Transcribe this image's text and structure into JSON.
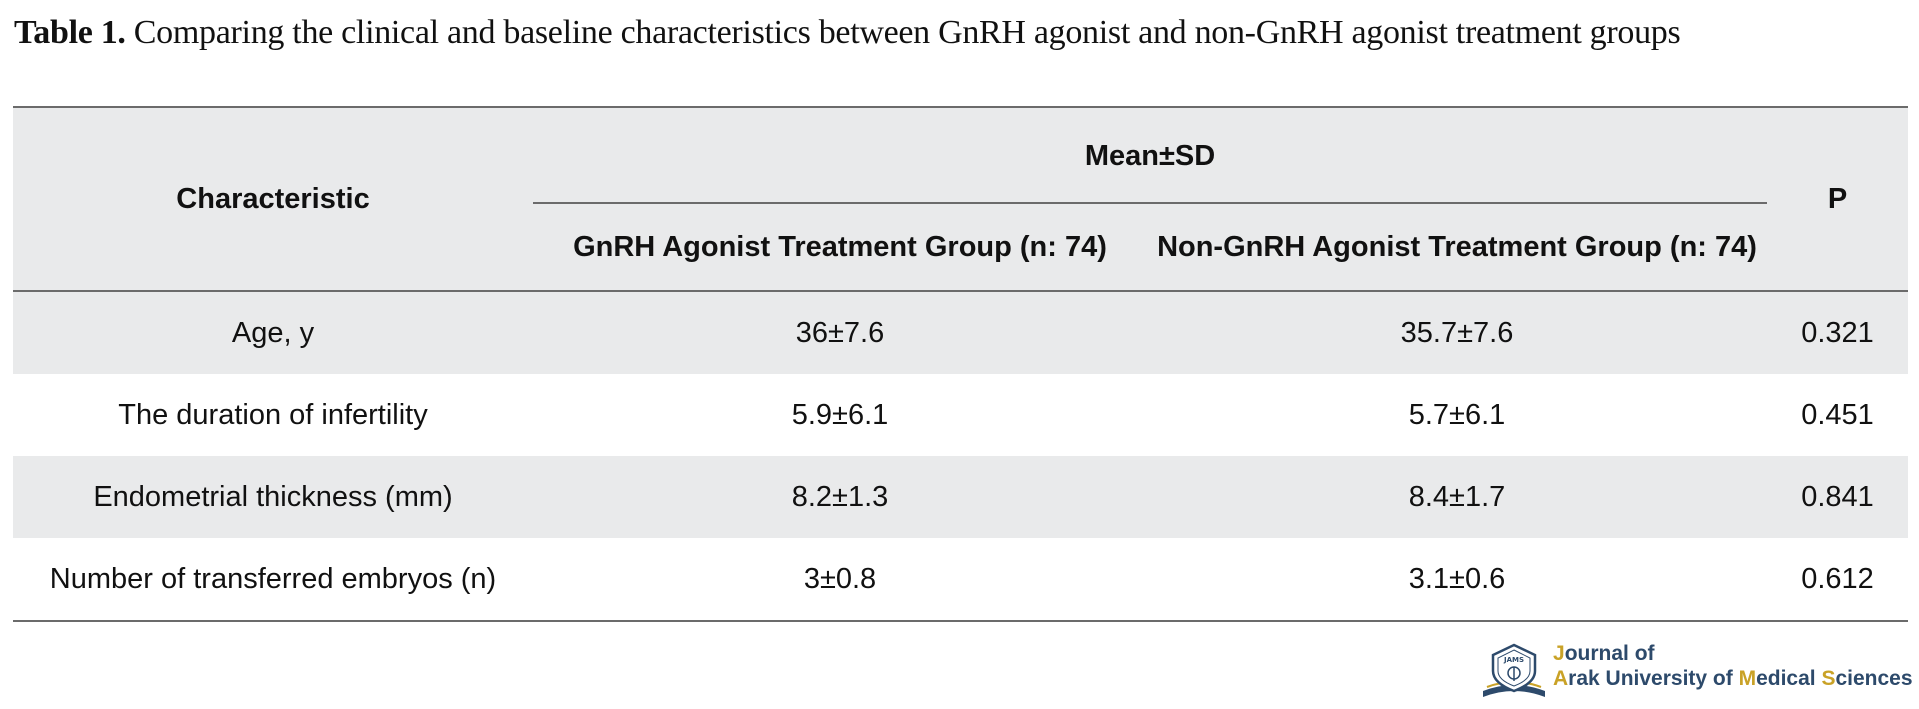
{
  "caption": {
    "label": "Table 1.",
    "text": " Comparing the clinical and baseline characteristics between GnRH agonist and non-GnRH agonist treatment groups"
  },
  "table": {
    "header": {
      "characteristic": "Characteristic",
      "group_header": "Mean±SD",
      "col_agonist": "GnRH Agonist Treatment Group (n: 74)",
      "col_non_agonist": "Non-GnRH Agonist Treatment Group (n: 74)",
      "p": "P"
    },
    "rows": [
      {
        "characteristic": "Age, y",
        "agonist": "36±7.6",
        "non_agonist": "35.7±7.6",
        "p": "0.321"
      },
      {
        "characteristic": "The duration of infertility",
        "agonist": "5.9±6.1",
        "non_agonist": "5.7±6.1",
        "p": "0.451"
      },
      {
        "characteristic": "Endometrial thickness (mm)",
        "agonist": "8.2±1.3",
        "non_agonist": "8.4±1.7",
        "p": "0.841"
      },
      {
        "characteristic": "Number of transferred embryos (n)",
        "agonist": "3±0.8",
        "non_agonist": "3.1±0.6",
        "p": "0.612"
      }
    ]
  },
  "journal_logo": {
    "line1_first": "J",
    "line1_rest": "ournal of",
    "line2_a": "A",
    "line2_rest1": "rak University of ",
    "line2_m": "M",
    "line2_rest2": "edical ",
    "line2_s": "S",
    "line2_rest3": "ciences",
    "emblem_text": "JAMS",
    "colors": {
      "text": "#2d4a6b",
      "accent": "#c9a227"
    }
  },
  "colors": {
    "row_shade": "#e9eaeb",
    "rule": "#6b6b6b"
  }
}
